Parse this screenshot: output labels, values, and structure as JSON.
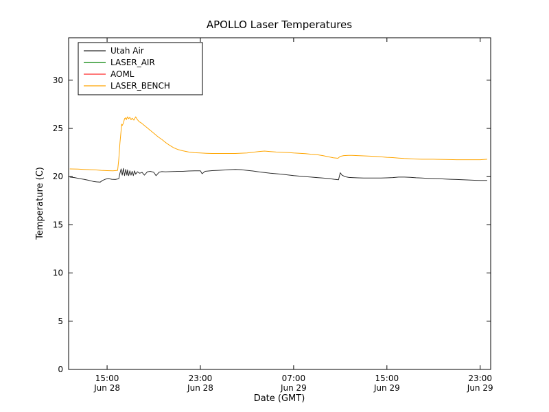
{
  "figure": {
    "title": "APOLLO Laser Temperatures",
    "xlabel": "Date (GMT)",
    "ylabel": "Temperature (C)"
  },
  "legend": {
    "entries": [
      {
        "label": "Utah Air",
        "color": "#2a2a2a"
      },
      {
        "label": "LASER_AIR",
        "color": "#008000"
      },
      {
        "label": "AOML",
        "color": "#ff2a2a"
      },
      {
        "label": "LASER_BENCH",
        "color": "#ffa500"
      }
    ]
  },
  "chart_data": {
    "type": "line",
    "title": "APOLLO Laser Temperatures",
    "xlabel": "Date (GMT)",
    "ylabel": "Temperature (C)",
    "x_unit": "hours since Jun 28 00:00 GMT",
    "xlim": [
      11.7,
      47.9
    ],
    "ylim": [
      0,
      34.4
    ],
    "grid": false,
    "legend_position": "upper left",
    "x_ticks": [
      {
        "t": 15,
        "time": "15:00",
        "date": "Jun 28"
      },
      {
        "t": 23,
        "time": "23:00",
        "date": "Jun 28"
      },
      {
        "t": 31,
        "time": "07:00",
        "date": "Jun 29"
      },
      {
        "t": 39,
        "time": "15:00",
        "date": "Jun 29"
      },
      {
        "t": 47,
        "time": "23:00",
        "date": "Jun 29"
      }
    ],
    "y_ticks": [
      {
        "v": 0,
        "label": "0"
      },
      {
        "v": 5,
        "label": "5"
      },
      {
        "v": 10,
        "label": "10"
      },
      {
        "v": 15,
        "label": "15"
      },
      {
        "v": 20,
        "label": "20"
      },
      {
        "v": 25,
        "label": "25"
      },
      {
        "v": 30,
        "label": "30"
      }
    ],
    "series": [
      {
        "name": "Utah Air",
        "color": "#2a2a2a",
        "points": [
          [
            11.8,
            19.95
          ],
          [
            12.2,
            19.9
          ],
          [
            12.6,
            19.8
          ],
          [
            13.0,
            19.72
          ],
          [
            13.4,
            19.62
          ],
          [
            13.8,
            19.5
          ],
          [
            14.1,
            19.45
          ],
          [
            14.4,
            19.42
          ],
          [
            14.6,
            19.6
          ],
          [
            14.9,
            19.75
          ],
          [
            15.1,
            19.8
          ],
          [
            15.4,
            19.72
          ],
          [
            15.7,
            19.7
          ],
          [
            16.0,
            19.78
          ],
          [
            16.1,
            20.35
          ],
          [
            16.2,
            20.8
          ],
          [
            16.3,
            20.15
          ],
          [
            16.4,
            20.85
          ],
          [
            16.5,
            20.1
          ],
          [
            16.6,
            20.75
          ],
          [
            16.7,
            20.15
          ],
          [
            16.75,
            20.7
          ],
          [
            16.85,
            20.1
          ],
          [
            16.95,
            20.6
          ],
          [
            17.05,
            20.15
          ],
          [
            17.15,
            20.55
          ],
          [
            17.25,
            20.1
          ],
          [
            17.35,
            20.6
          ],
          [
            17.45,
            20.25
          ],
          [
            17.6,
            20.5
          ],
          [
            17.8,
            20.35
          ],
          [
            18.0,
            20.45
          ],
          [
            18.2,
            20.15
          ],
          [
            18.45,
            20.5
          ],
          [
            18.7,
            20.55
          ],
          [
            19.0,
            20.45
          ],
          [
            19.2,
            20.1
          ],
          [
            19.45,
            20.45
          ],
          [
            19.7,
            20.52
          ],
          [
            20.0,
            20.5
          ],
          [
            20.5,
            20.52
          ],
          [
            21.0,
            20.55
          ],
          [
            21.5,
            20.55
          ],
          [
            22.0,
            20.58
          ],
          [
            22.5,
            20.6
          ],
          [
            23.0,
            20.6
          ],
          [
            23.15,
            20.3
          ],
          [
            23.4,
            20.55
          ],
          [
            24.0,
            20.62
          ],
          [
            24.5,
            20.65
          ],
          [
            25.0,
            20.68
          ],
          [
            25.5,
            20.72
          ],
          [
            26.0,
            20.75
          ],
          [
            26.5,
            20.72
          ],
          [
            27.0,
            20.65
          ],
          [
            27.5,
            20.58
          ],
          [
            28.0,
            20.5
          ],
          [
            28.5,
            20.42
          ],
          [
            29.0,
            20.35
          ],
          [
            29.5,
            20.3
          ],
          [
            30.0,
            20.25
          ],
          [
            30.5,
            20.18
          ],
          [
            31.0,
            20.1
          ],
          [
            31.5,
            20.05
          ],
          [
            32.0,
            20.0
          ],
          [
            32.5,
            19.95
          ],
          [
            33.0,
            19.9
          ],
          [
            33.5,
            19.85
          ],
          [
            34.0,
            19.8
          ],
          [
            34.5,
            19.72
          ],
          [
            34.85,
            19.68
          ],
          [
            35.0,
            20.4
          ],
          [
            35.15,
            20.15
          ],
          [
            35.4,
            20.0
          ],
          [
            35.7,
            19.92
          ],
          [
            36.0,
            19.9
          ],
          [
            36.5,
            19.87
          ],
          [
            37.0,
            19.85
          ],
          [
            37.5,
            19.85
          ],
          [
            38.0,
            19.85
          ],
          [
            38.5,
            19.85
          ],
          [
            39.0,
            19.87
          ],
          [
            39.5,
            19.9
          ],
          [
            40.0,
            19.95
          ],
          [
            40.5,
            19.95
          ],
          [
            41.0,
            19.92
          ],
          [
            41.5,
            19.88
          ],
          [
            42.0,
            19.85
          ],
          [
            42.5,
            19.82
          ],
          [
            43.0,
            19.8
          ],
          [
            43.5,
            19.78
          ],
          [
            44.0,
            19.75
          ],
          [
            44.5,
            19.72
          ],
          [
            45.0,
            19.7
          ],
          [
            45.5,
            19.68
          ],
          [
            46.0,
            19.65
          ],
          [
            46.5,
            19.62
          ],
          [
            47.0,
            19.6
          ],
          [
            47.6,
            19.6
          ]
        ]
      },
      {
        "name": "LASER_AIR",
        "color": "#008000",
        "points": []
      },
      {
        "name": "AOML",
        "color": "#ff2a2a",
        "points": []
      },
      {
        "name": "LASER_BENCH",
        "color": "#ffa500",
        "points": [
          [
            11.8,
            20.8
          ],
          [
            12.5,
            20.78
          ],
          [
            13.0,
            20.75
          ],
          [
            13.5,
            20.72
          ],
          [
            14.0,
            20.7
          ],
          [
            14.5,
            20.65
          ],
          [
            15.0,
            20.62
          ],
          [
            15.5,
            20.6
          ],
          [
            15.9,
            20.65
          ],
          [
            16.0,
            21.8
          ],
          [
            16.1,
            23.5
          ],
          [
            16.2,
            24.8
          ],
          [
            16.25,
            25.45
          ],
          [
            16.3,
            25.3
          ],
          [
            16.4,
            25.55
          ],
          [
            16.5,
            26.0
          ],
          [
            16.6,
            26.1
          ],
          [
            16.65,
            25.9
          ],
          [
            16.75,
            26.2
          ],
          [
            16.85,
            26.0
          ],
          [
            16.95,
            26.15
          ],
          [
            17.05,
            25.9
          ],
          [
            17.15,
            26.05
          ],
          [
            17.3,
            25.85
          ],
          [
            17.45,
            26.2
          ],
          [
            17.6,
            25.9
          ],
          [
            17.75,
            25.7
          ],
          [
            17.95,
            25.55
          ],
          [
            18.15,
            25.35
          ],
          [
            18.35,
            25.15
          ],
          [
            18.6,
            24.9
          ],
          [
            18.85,
            24.65
          ],
          [
            19.1,
            24.4
          ],
          [
            19.4,
            24.1
          ],
          [
            19.7,
            23.85
          ],
          [
            20.0,
            23.55
          ],
          [
            20.3,
            23.3
          ],
          [
            20.7,
            23.0
          ],
          [
            21.1,
            22.8
          ],
          [
            21.5,
            22.68
          ],
          [
            22.0,
            22.55
          ],
          [
            22.5,
            22.48
          ],
          [
            23.0,
            22.45
          ],
          [
            23.5,
            22.42
          ],
          [
            24.0,
            22.4
          ],
          [
            25.0,
            22.4
          ],
          [
            26.0,
            22.4
          ],
          [
            27.0,
            22.45
          ],
          [
            27.5,
            22.52
          ],
          [
            28.0,
            22.6
          ],
          [
            28.5,
            22.65
          ],
          [
            29.0,
            22.6
          ],
          [
            29.5,
            22.55
          ],
          [
            30.0,
            22.52
          ],
          [
            30.5,
            22.5
          ],
          [
            31.0,
            22.45
          ],
          [
            31.5,
            22.42
          ],
          [
            32.0,
            22.38
          ],
          [
            32.5,
            22.32
          ],
          [
            33.0,
            22.28
          ],
          [
            33.5,
            22.18
          ],
          [
            34.0,
            22.05
          ],
          [
            34.4,
            21.95
          ],
          [
            34.8,
            21.9
          ],
          [
            35.0,
            22.1
          ],
          [
            35.3,
            22.18
          ],
          [
            35.7,
            22.2
          ],
          [
            36.0,
            22.2
          ],
          [
            36.5,
            22.18
          ],
          [
            37.0,
            22.15
          ],
          [
            37.5,
            22.12
          ],
          [
            38.0,
            22.1
          ],
          [
            38.5,
            22.05
          ],
          [
            39.0,
            22.0
          ],
          [
            39.5,
            21.97
          ],
          [
            40.0,
            21.92
          ],
          [
            40.5,
            21.88
          ],
          [
            41.0,
            21.85
          ],
          [
            41.5,
            21.82
          ],
          [
            42.0,
            21.8
          ],
          [
            43.0,
            21.8
          ],
          [
            44.0,
            21.78
          ],
          [
            45.0,
            21.75
          ],
          [
            46.0,
            21.75
          ],
          [
            47.0,
            21.75
          ],
          [
            47.6,
            21.8
          ]
        ]
      }
    ]
  }
}
